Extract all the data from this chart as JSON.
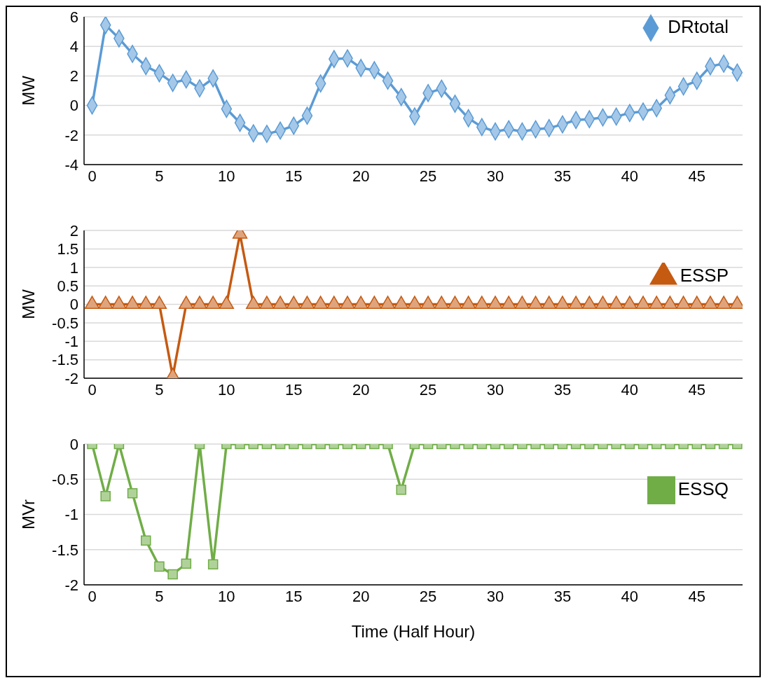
{
  "chart_data": [
    {
      "type": "line",
      "ylabel": "MW",
      "x": [
        0,
        1,
        2,
        3,
        4,
        5,
        6,
        7,
        8,
        9,
        10,
        11,
        12,
        13,
        14,
        15,
        16,
        17,
        18,
        19,
        20,
        21,
        22,
        23,
        24,
        25,
        26,
        27,
        28,
        29,
        30,
        31,
        32,
        33,
        34,
        35,
        36,
        37,
        38,
        39,
        40,
        41,
        42,
        43,
        44,
        45,
        46,
        47,
        48
      ],
      "series": [
        {
          "name": "DRtotal",
          "color": "#5b9bd5",
          "values": [
            0,
            5.44,
            4.54,
            3.49,
            2.66,
            2.18,
            1.53,
            1.76,
            1.16,
            1.83,
            -0.23,
            -1.17,
            -1.88,
            -1.92,
            -1.7,
            -1.37,
            -0.69,
            1.49,
            3.14,
            3.19,
            2.54,
            2.39,
            1.68,
            0.57,
            -0.74,
            0.84,
            1.14,
            0.12,
            -0.86,
            -1.46,
            -1.76,
            -1.61,
            -1.76,
            -1.61,
            -1.53,
            -1.28,
            -0.98,
            -0.93,
            -0.81,
            -0.75,
            -0.51,
            -0.41,
            -0.18,
            0.69,
            1.29,
            1.67,
            2.65,
            2.83,
            2.23
          ]
        }
      ],
      "xlim": [
        -0.6,
        48.4
      ],
      "xticks": [
        0,
        5,
        10,
        15,
        20,
        25,
        30,
        35,
        40,
        45
      ],
      "ylim": [
        -4,
        6
      ],
      "yticks": [
        -4,
        -2,
        0,
        2,
        4,
        6
      ],
      "grid": "y",
      "legend": "top right",
      "marker": "diamond"
    },
    {
      "type": "line",
      "ylabel": "MW",
      "x": [
        0,
        1,
        2,
        3,
        4,
        5,
        6,
        7,
        8,
        9,
        10,
        11,
        12,
        13,
        14,
        15,
        16,
        17,
        18,
        19,
        20,
        21,
        22,
        23,
        24,
        25,
        26,
        27,
        28,
        29,
        30,
        31,
        32,
        33,
        34,
        35,
        36,
        37,
        38,
        39,
        40,
        41,
        42,
        43,
        44,
        45,
        46,
        47,
        48
      ],
      "series": [
        {
          "name": "ESSP",
          "color": "#c55a11",
          "values": [
            0,
            0,
            0,
            0,
            0,
            0,
            -1.95,
            0,
            0,
            0,
            0,
            1.9,
            0,
            0,
            0,
            0,
            0,
            0,
            0,
            0,
            0,
            0,
            0,
            0,
            0,
            0,
            0,
            0,
            0,
            0,
            0,
            0,
            0,
            0,
            0,
            0,
            0,
            0,
            0,
            0,
            0,
            0,
            0,
            0,
            0,
            0,
            0,
            0,
            0
          ]
        }
      ],
      "xlim": [
        -0.6,
        48.4
      ],
      "xticks": [
        0,
        5,
        10,
        15,
        20,
        25,
        30,
        35,
        40,
        45
      ],
      "ylim": [
        -2,
        2
      ],
      "yticks": [
        -2,
        -1.5,
        -1,
        -0.5,
        0,
        0.5,
        1,
        1.5,
        2
      ],
      "grid": "y",
      "legend": "right",
      "marker": "triangle"
    },
    {
      "type": "line",
      "ylabel": "MVr",
      "xlabel": "Time (Half Hour)",
      "x": [
        0,
        1,
        2,
        3,
        4,
        5,
        6,
        7,
        8,
        9,
        10,
        11,
        12,
        13,
        14,
        15,
        16,
        17,
        18,
        19,
        20,
        21,
        22,
        23,
        24,
        25,
        26,
        27,
        28,
        29,
        30,
        31,
        32,
        33,
        34,
        35,
        36,
        37,
        38,
        39,
        40,
        41,
        42,
        43,
        44,
        45,
        46,
        47,
        48
      ],
      "series": [
        {
          "name": "ESSQ",
          "color": "#70ad47",
          "values": [
            0,
            -0.74,
            0,
            -0.7,
            -1.37,
            -1.74,
            -1.85,
            -1.7,
            0,
            -1.71,
            0,
            0,
            0,
            0,
            0,
            0,
            0,
            0,
            0,
            0,
            0,
            0,
            0,
            -0.65,
            0,
            0,
            0,
            0,
            0,
            0,
            0,
            0,
            0,
            0,
            0,
            0,
            0,
            0,
            0,
            0,
            0,
            0,
            0,
            0,
            0,
            0,
            0,
            0,
            0
          ]
        }
      ],
      "xlim": [
        -0.6,
        48.4
      ],
      "xticks": [
        0,
        5,
        10,
        15,
        20,
        25,
        30,
        35,
        40,
        45
      ],
      "ylim": [
        -2,
        0
      ],
      "yticks": [
        -2,
        -1.5,
        -1,
        -0.5,
        0
      ],
      "grid": "y",
      "legend": "right",
      "marker": "square"
    }
  ]
}
